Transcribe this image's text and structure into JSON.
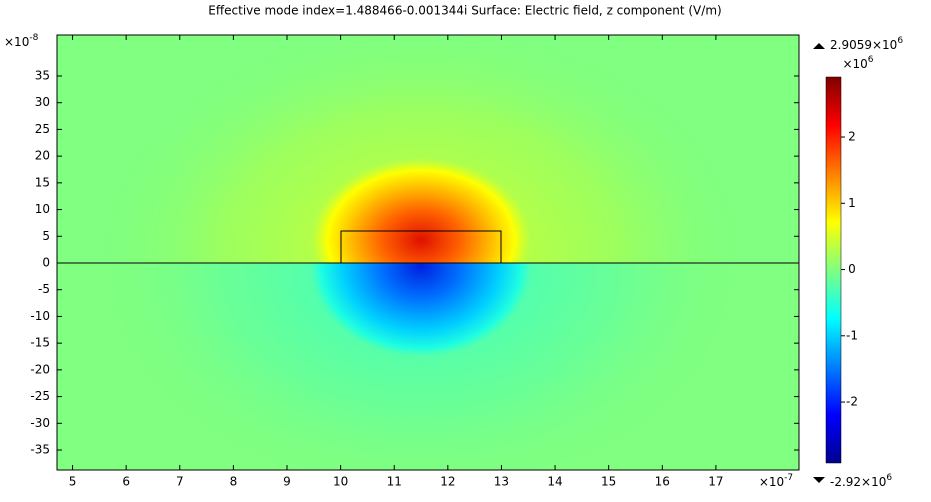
{
  "chart_data": {
    "type": "surface",
    "title": "Effective mode index=1.488466-0.001344i    Surface: Electric field, z component (V/m)",
    "xlim": [
      4.71,
      18.55
    ],
    "xticks": [
      5,
      6,
      7,
      8,
      9,
      10,
      11,
      12,
      13,
      14,
      15,
      16,
      17
    ],
    "x_multiplier": "×10",
    "x_exponent": "-7",
    "ylim": [
      -38.74,
      42.67
    ],
    "yticks": [
      -35,
      -30,
      -25,
      -20,
      -15,
      -10,
      -5,
      0,
      5,
      10,
      15,
      20,
      25,
      30,
      35
    ],
    "y_multiplier": "×10",
    "y_exponent": "-8",
    "colorbar": {
      "lim": [
        -2.92,
        2.9059
      ],
      "ticks": [
        -2,
        -1,
        0,
        1,
        2
      ],
      "multiplier": "×10",
      "exponent": "6",
      "max_label": "2.9059×10",
      "max_exponent": "6",
      "min_label": "-2.92×10",
      "min_exponent": "6"
    }
  }
}
